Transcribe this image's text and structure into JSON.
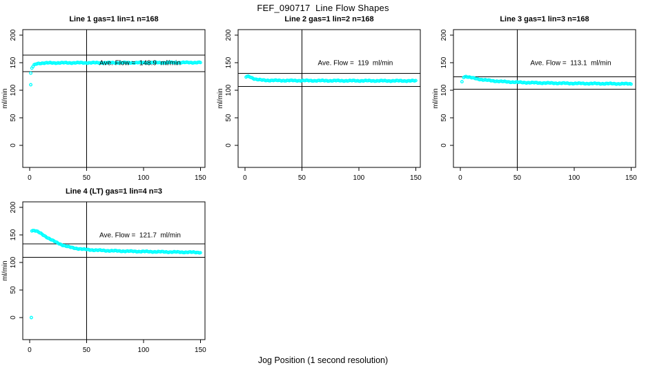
{
  "title": "FEF_090717  Line Flow Shapes",
  "xlabel": "Jog Position (1 second resolution)",
  "ylabel": "ml/min",
  "point_color": "#00FFFF",
  "axis_color": "#000000",
  "chart_data": [
    {
      "type": "scatter",
      "title": "Line 1 gas=1 lin=1 n=168",
      "annotation": "Ave. Flow =  148.9  ml/min",
      "ave_flow": 148.9,
      "hlines": [
        163.8,
        134.0
      ],
      "vline": 50,
      "xlim": [
        -6,
        154
      ],
      "ylim": [
        -40,
        210
      ],
      "xticks": [
        0,
        50,
        100,
        150
      ],
      "yticks": [
        0,
        50,
        100,
        150,
        200
      ],
      "x_step": 1,
      "keypoints": [
        [
          2,
          140
        ],
        [
          3,
          143
        ],
        [
          4,
          145.5
        ],
        [
          5,
          146.8
        ],
        [
          6,
          147.8
        ],
        [
          7,
          148.4
        ],
        [
          9,
          149
        ],
        [
          12,
          149.3
        ],
        [
          16,
          149.5
        ],
        [
          20,
          149.6
        ],
        [
          30,
          149.7
        ],
        [
          45,
          149.8
        ],
        [
          60,
          149.8
        ],
        [
          80,
          149.9
        ],
        [
          100,
          150
        ],
        [
          120,
          150.1
        ],
        [
          150,
          150.3
        ]
      ],
      "outliers": [
        [
          1,
          131
        ],
        [
          1,
          110
        ]
      ]
    },
    {
      "type": "scatter",
      "title": "Line 2 gas=1 lin=2 n=168",
      "annotation": "Ave. Flow =  119  ml/min",
      "ave_flow": 119,
      "hlines": [
        130.9,
        107.1
      ],
      "vline": 50,
      "xlim": [
        -6,
        154
      ],
      "ylim": [
        -40,
        210
      ],
      "xticks": [
        0,
        50,
        100,
        150
      ],
      "yticks": [
        0,
        50,
        100,
        150,
        200
      ],
      "x_step": 1,
      "keypoints": [
        [
          1,
          124
        ],
        [
          2,
          124.8
        ],
        [
          3,
          125
        ],
        [
          4,
          124.6
        ],
        [
          5,
          123.8
        ],
        [
          6,
          122.8
        ],
        [
          8,
          121
        ],
        [
          10,
          119.8
        ],
        [
          12,
          119
        ],
        [
          15,
          118.4
        ],
        [
          18,
          118.1
        ],
        [
          22,
          117.9
        ],
        [
          28,
          117.7
        ],
        [
          35,
          117.6
        ],
        [
          45,
          117.5
        ],
        [
          60,
          117.4
        ],
        [
          80,
          117.3
        ],
        [
          100,
          117.2
        ],
        [
          120,
          117.1
        ],
        [
          150,
          117
        ]
      ],
      "outliers": []
    },
    {
      "type": "scatter",
      "title": "Line 3 gas=1 lin=3 n=168",
      "annotation": "Ave. Flow =  113.1  ml/min",
      "ave_flow": 113.1,
      "hlines": [
        124.4,
        101.8
      ],
      "vline": 50,
      "xlim": [
        -6,
        154
      ],
      "ylim": [
        -40,
        210
      ],
      "xticks": [
        0,
        50,
        100,
        150
      ],
      "yticks": [
        0,
        50,
        100,
        150,
        200
      ],
      "x_step": 1,
      "keypoints": [
        [
          3,
          124
        ],
        [
          4,
          124.8
        ],
        [
          5,
          125
        ],
        [
          6,
          124.6
        ],
        [
          8,
          123.6
        ],
        [
          10,
          122.6
        ],
        [
          13,
          121.3
        ],
        [
          16,
          120.2
        ],
        [
          20,
          119
        ],
        [
          25,
          117.8
        ],
        [
          30,
          116.8
        ],
        [
          36,
          115.9
        ],
        [
          43,
          115.1
        ],
        [
          50,
          114.4
        ],
        [
          58,
          113.9
        ],
        [
          66,
          113.5
        ],
        [
          75,
          113.1
        ],
        [
          85,
          112.8
        ],
        [
          95,
          112.5
        ],
        [
          110,
          112.2
        ],
        [
          125,
          112
        ],
        [
          150,
          111.6
        ]
      ],
      "outliers": [
        [
          1.5,
          115.5
        ]
      ]
    },
    {
      "type": "scatter",
      "title": "Line 4 (LT) gas=1 lin=4 n=3",
      "annotation": "Ave. Flow =  121.7  ml/min",
      "ave_flow": 121.7,
      "hlines": [
        133.9,
        109.5
      ],
      "vline": 50,
      "xlim": [
        -6,
        154
      ],
      "ylim": [
        -40,
        210
      ],
      "xticks": [
        0,
        50,
        100,
        150
      ],
      "yticks": [
        0,
        50,
        100,
        150,
        200
      ],
      "x_step": 1,
      "keypoints": [
        [
          2,
          158
        ],
        [
          4,
          158
        ],
        [
          5,
          157.5
        ],
        [
          6,
          156.8
        ],
        [
          7,
          155.8
        ],
        [
          8,
          154.7
        ],
        [
          10,
          152.3
        ],
        [
          12,
          149.8
        ],
        [
          14,
          147.3
        ],
        [
          16,
          144.8
        ],
        [
          18,
          142.4
        ],
        [
          20,
          140.1
        ],
        [
          22,
          137.9
        ],
        [
          24,
          135.9
        ],
        [
          26,
          134.1
        ],
        [
          28,
          132.4
        ],
        [
          30,
          130.9
        ],
        [
          33,
          129
        ],
        [
          36,
          127.4
        ],
        [
          39,
          126.2
        ],
        [
          42,
          125.2
        ],
        [
          46,
          124.2
        ],
        [
          50,
          123.4
        ],
        [
          55,
          122.7
        ],
        [
          60,
          122.1
        ],
        [
          66,
          121.6
        ],
        [
          72,
          121.2
        ],
        [
          80,
          120.7
        ],
        [
          90,
          120.2
        ],
        [
          100,
          119.8
        ],
        [
          110,
          119.4
        ],
        [
          120,
          119.1
        ],
        [
          130,
          118.8
        ],
        [
          140,
          118.5
        ],
        [
          150,
          118.2
        ]
      ],
      "outliers": [
        [
          1.5,
          0
        ]
      ]
    }
  ]
}
